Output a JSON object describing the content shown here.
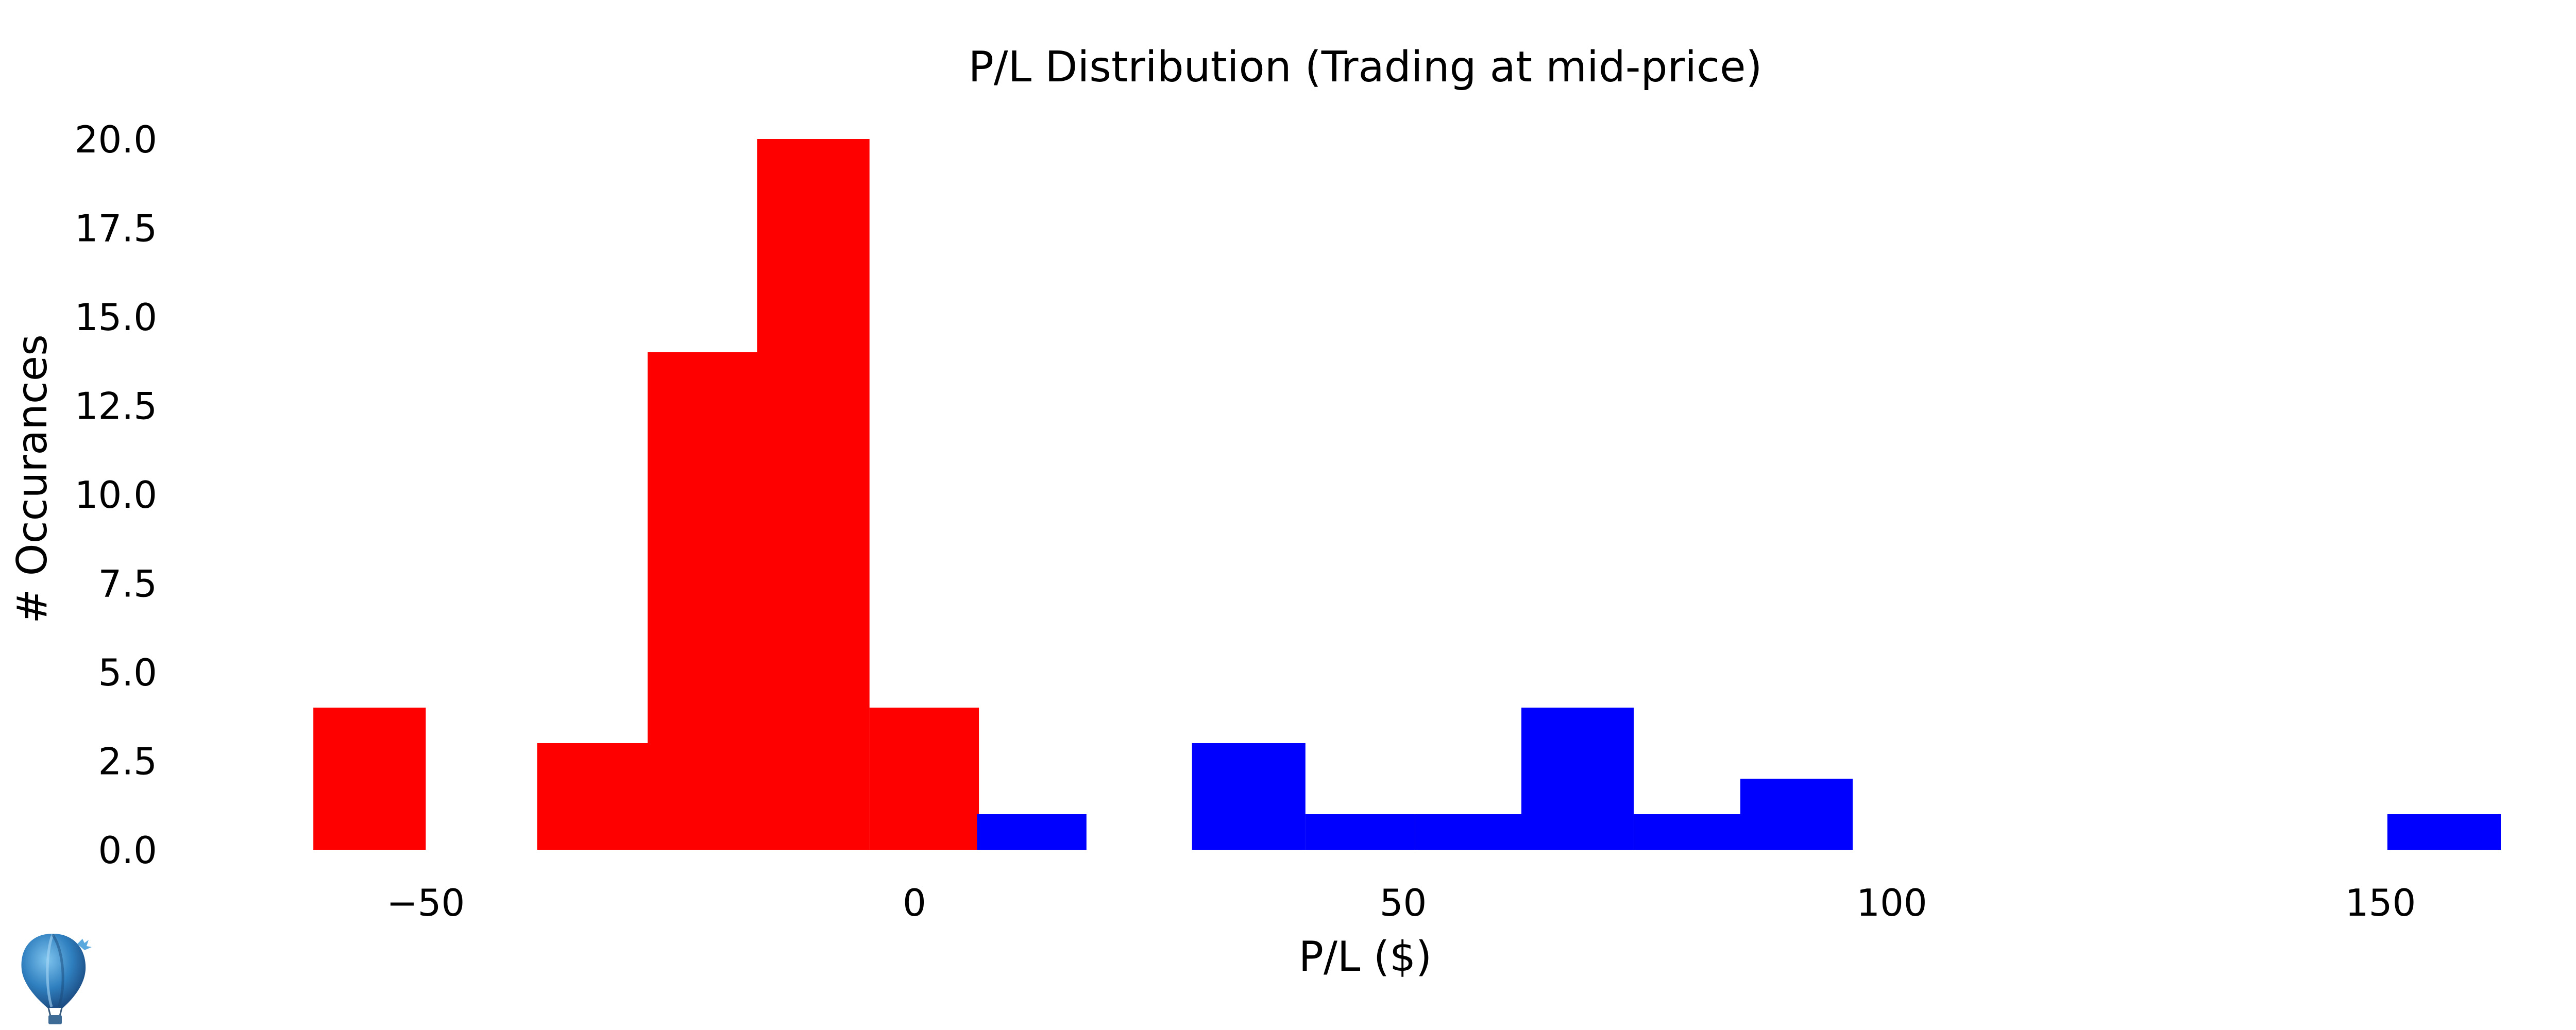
{
  "chart_data": {
    "type": "bar",
    "title": "P/L Distribution (Trading at mid-price)",
    "xlabel": "P/L ($)",
    "ylabel": "# Occurances",
    "xlim": [
      -73,
      170
    ],
    "ylim": [
      0,
      20
    ],
    "x_ticks": [
      -50,
      0,
      50,
      100,
      150
    ],
    "x_tick_labels": [
      "−50",
      "0",
      "50",
      "100",
      "150"
    ],
    "y_ticks": [
      0,
      2.5,
      5,
      7.5,
      10,
      12.5,
      15,
      17.5,
      20
    ],
    "y_tick_labels": [
      "0.0",
      "2.5",
      "5.0",
      "7.5",
      "10.0",
      "12.5",
      "15.0",
      "17.5",
      "20.0"
    ],
    "grid": false,
    "series": [
      {
        "color": "#ff0000",
        "bins": [
          {
            "x0": -61.5,
            "x1": -50.0,
            "count": 4
          },
          {
            "x0": -50.0,
            "x1": -38.6,
            "count": 0
          },
          {
            "x0": -38.6,
            "x1": -27.3,
            "count": 3
          },
          {
            "x0": -27.3,
            "x1": -16.1,
            "count": 14
          },
          {
            "x0": -16.1,
            "x1": -4.6,
            "count": 20
          },
          {
            "x0": -4.6,
            "x1": 6.6,
            "count": 4
          }
        ]
      },
      {
        "color": "#0000ff",
        "bins": [
          {
            "x0": 6.4,
            "x1": 17.6,
            "count": 1
          },
          {
            "x0": 17.6,
            "x1": 28.4,
            "count": 0
          },
          {
            "x0": 28.4,
            "x1": 40.0,
            "count": 3
          },
          {
            "x0": 40.0,
            "x1": 51.2,
            "count": 1
          },
          {
            "x0": 51.2,
            "x1": 62.1,
            "count": 1
          },
          {
            "x0": 62.1,
            "x1": 73.6,
            "count": 4
          },
          {
            "x0": 73.6,
            "x1": 84.5,
            "count": 1
          },
          {
            "x0": 84.5,
            "x1": 96.0,
            "count": 2
          },
          {
            "x0": 150.7,
            "x1": 162.3,
            "count": 1
          }
        ]
      }
    ]
  }
}
